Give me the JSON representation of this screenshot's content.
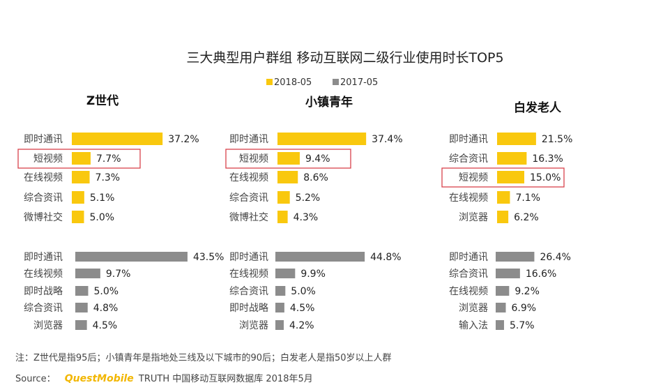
{
  "chart_data": {
    "type": "bar",
    "orientation": "horizontal",
    "title": "三大典型用户群组 移动互联网二级行业使用时长TOP5",
    "legend": [
      {
        "name": "2018-05",
        "color": "#f9c80e"
      },
      {
        "name": "2017-05",
        "color": "#8c8c8c"
      }
    ],
    "unit": "%",
    "highlight_category": "短视频",
    "groups": [
      {
        "title": "Z世代",
        "series": [
          {
            "name": "2018-05",
            "categories": [
              "即时通讯",
              "短视频",
              "在线视频",
              "综合资讯",
              "微博社交"
            ],
            "values": [
              37.2,
              7.7,
              7.3,
              5.1,
              5.0
            ],
            "labels": [
              "37.2%",
              "7.7%",
              "7.3%",
              "5.1%",
              "5.0%"
            ]
          },
          {
            "name": "2017-05",
            "categories": [
              "即时通讯",
              "在线视频",
              "即时战略",
              "综合资讯",
              "浏览器"
            ],
            "values": [
              43.5,
              9.7,
              5.0,
              4.8,
              4.5
            ],
            "labels": [
              "43.5%",
              "9.7%",
              "5.0%",
              "4.8%",
              "4.5%"
            ]
          }
        ]
      },
      {
        "title": "小镇青年",
        "series": [
          {
            "name": "2018-05",
            "categories": [
              "即时通讯",
              "短视频",
              "在线视频",
              "综合资讯",
              "微博社交"
            ],
            "values": [
              37.4,
              9.4,
              8.6,
              5.2,
              4.3
            ],
            "labels": [
              "37.4%",
              "9.4%",
              "8.6%",
              "5.2%",
              "4.3%"
            ]
          },
          {
            "name": "2017-05",
            "categories": [
              "即时通讯",
              "在线视频",
              "综合资讯",
              "即时战略",
              "浏览器"
            ],
            "values": [
              44.8,
              9.9,
              5.0,
              4.5,
              4.2
            ],
            "labels": [
              "44.8%",
              "9.9%",
              "5.0%",
              "4.5%",
              "4.2%"
            ]
          }
        ]
      },
      {
        "title": "白发老人",
        "series": [
          {
            "name": "2018-05",
            "categories": [
              "即时通讯",
              "综合资讯",
              "短视频",
              "在线视频",
              "浏览器"
            ],
            "values": [
              21.5,
              16.3,
              15.0,
              7.1,
              6.2
            ],
            "labels": [
              "21.5%",
              "16.3%",
              "15.0%",
              "7.1%",
              "6.2%"
            ]
          },
          {
            "name": "2017-05",
            "categories": [
              "即时通讯",
              "综合资讯",
              "在线视频",
              "浏览器",
              "输入法"
            ],
            "values": [
              26.4,
              16.6,
              9.2,
              6.9,
              5.7
            ],
            "labels": [
              "26.4%",
              "16.6%",
              "9.2%",
              "6.9%",
              "5.7%"
            ]
          }
        ]
      }
    ]
  },
  "footnote": "注：Z世代是指95后；小镇青年是指地处三线及以下城市的90后；白发老人是指50岁以上人群",
  "source": {
    "label": "Source：",
    "brand": "QuestMobile",
    "rest": "TRUTH 中国移动互联网数据库 2018年5月"
  }
}
